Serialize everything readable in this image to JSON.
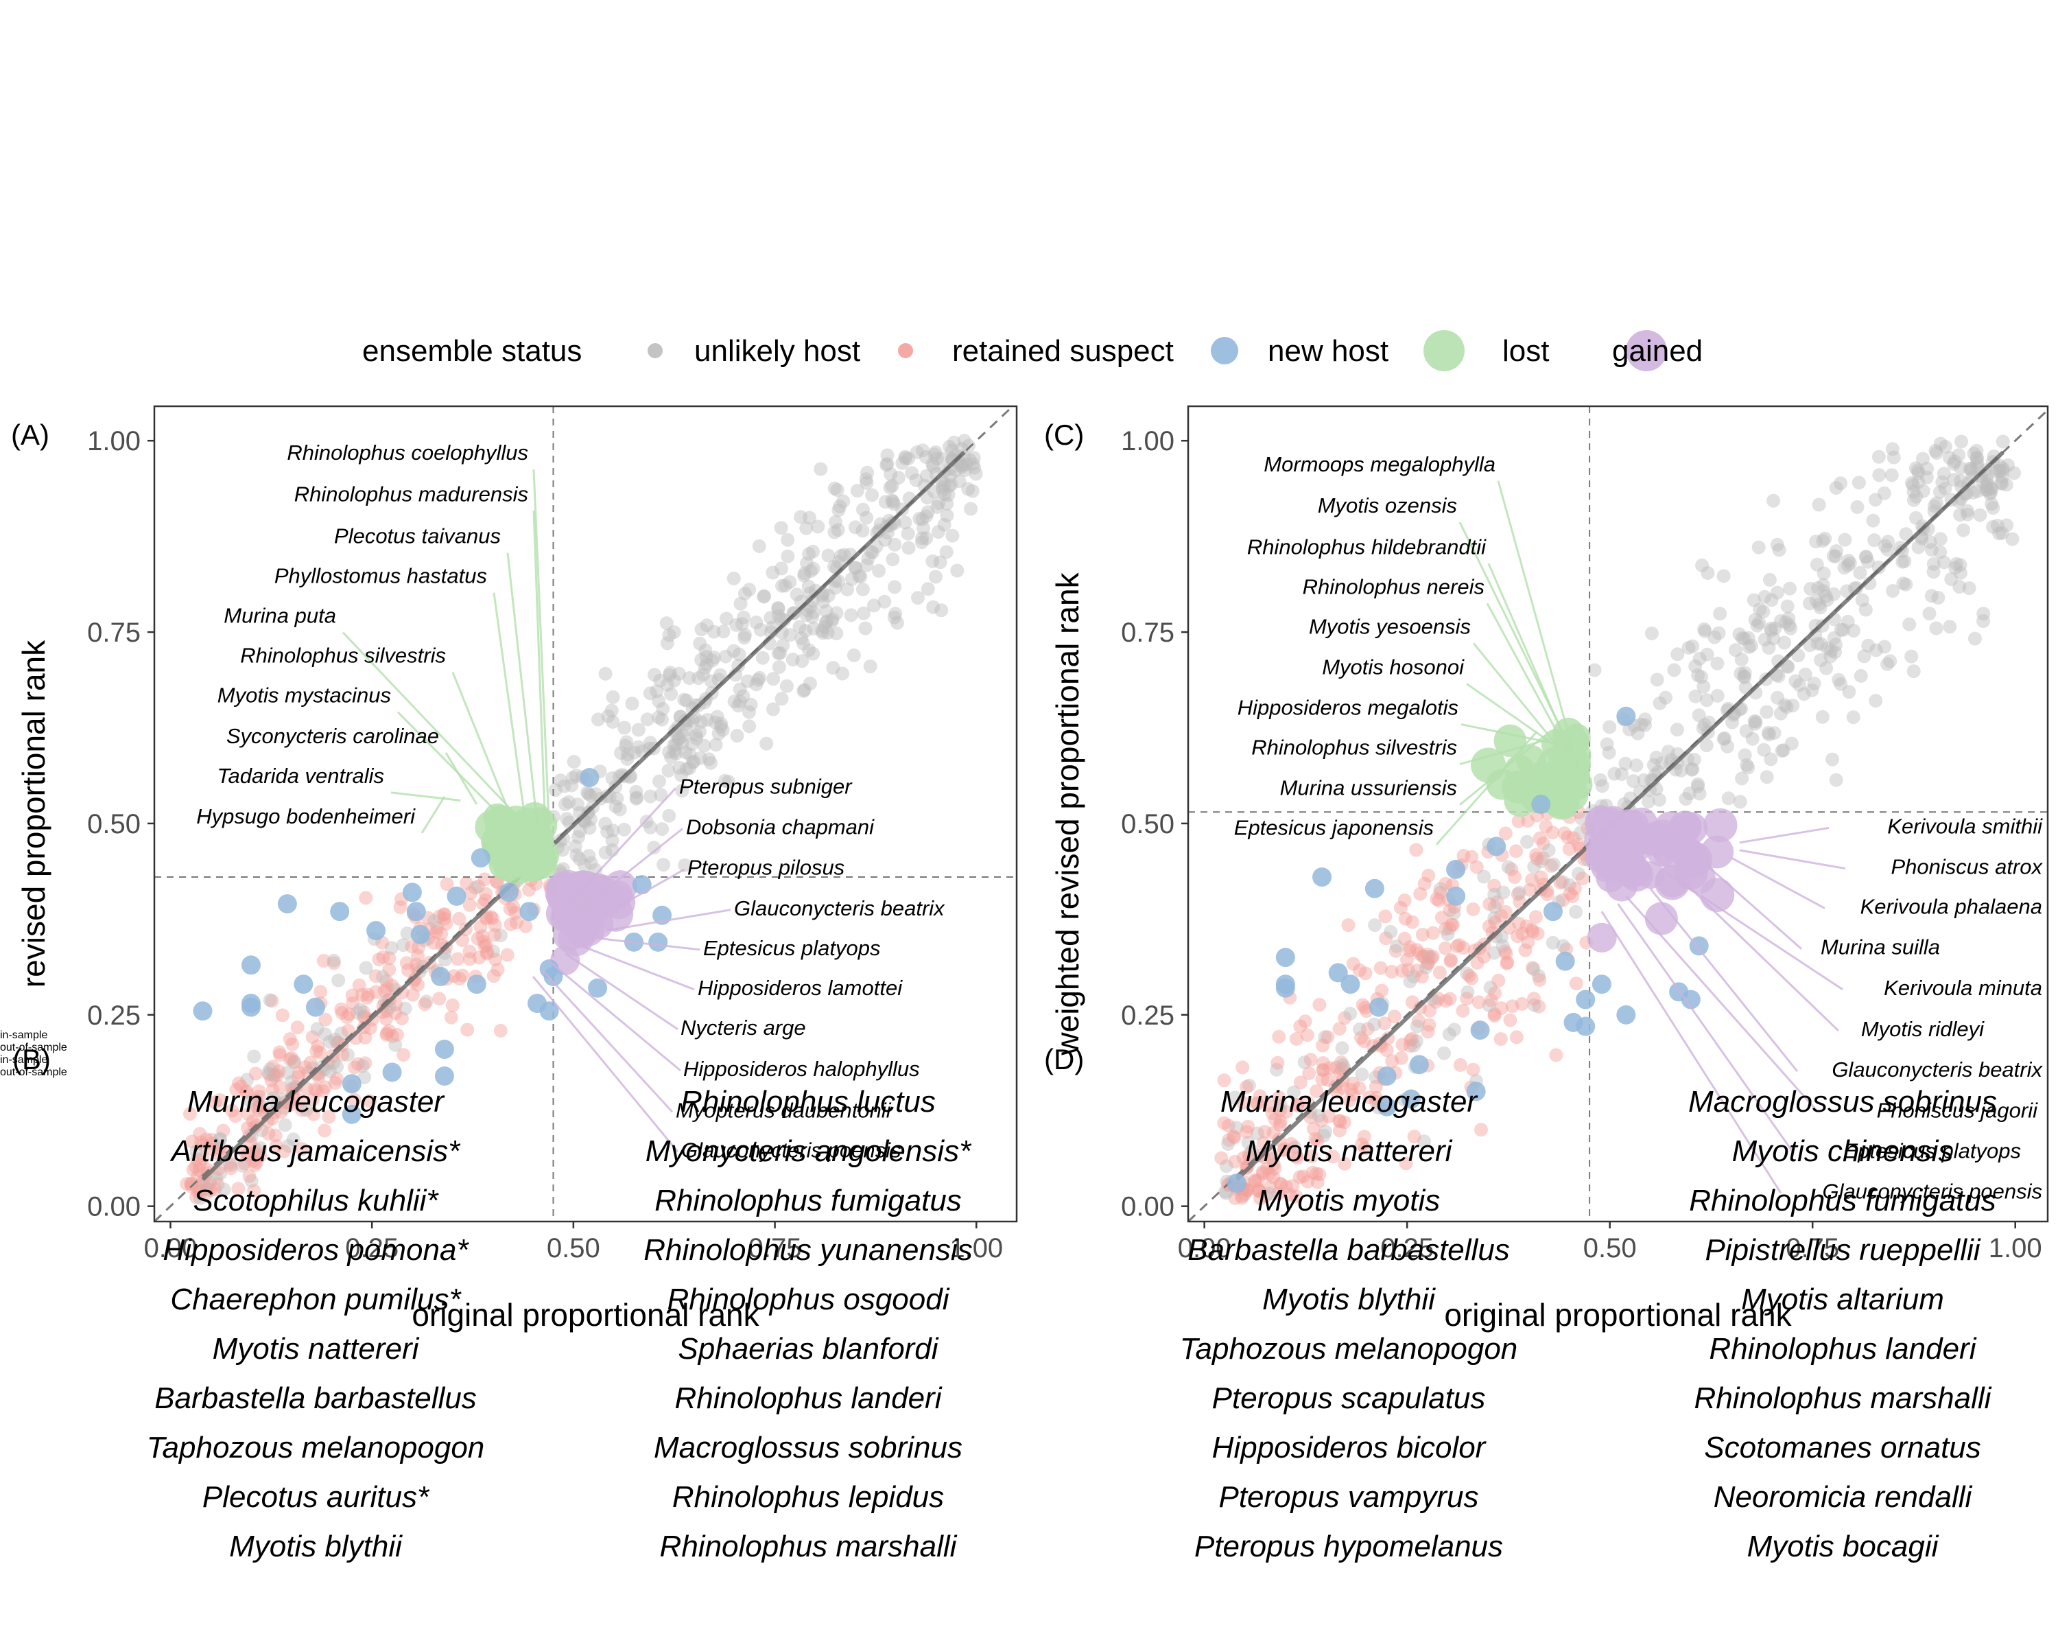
{
  "legend": {
    "title": "ensemble status",
    "items": [
      {
        "label": "unlikely host",
        "color": "#bdbdbd"
      },
      {
        "label": "retained suspect",
        "color": "#f4a09a"
      },
      {
        "label": "new host",
        "color": "#93b8dc"
      },
      {
        "label": "lost",
        "color": "#b4e0ad"
      },
      {
        "label": "gained",
        "color": "#cfb3dd"
      }
    ]
  },
  "chart_data": [
    {
      "panel": "(A)",
      "type": "scatter",
      "xlabel": "original proportional rank",
      "ylabel": "revised proportional rank",
      "xlim": [
        -0.02,
        1.05
      ],
      "ylim": [
        -0.02,
        1.045
      ],
      "xticks": [
        "0.00",
        "0.25",
        "0.50",
        "0.75",
        "1.00"
      ],
      "yticks": [
        "0.00",
        "0.25",
        "0.50",
        "0.75",
        "1.00"
      ],
      "threshold_x": 0.475,
      "threshold_y": 0.43,
      "reference_line": "y = x",
      "grid": false,
      "lost_labels": [
        {
          "name": "Rhinolophus coelophyllus",
          "y": 0.975,
          "x": 0.47
        },
        {
          "name": "Rhinolophus madurensis",
          "y": 0.921,
          "x": 0.465
        },
        {
          "name": "Plecotus taivanus",
          "y": 0.866,
          "x": 0.455
        },
        {
          "name": "Phyllostomus hastatus",
          "y": 0.814,
          "x": 0.44
        },
        {
          "name": "Murina puta",
          "y": 0.762,
          "x": 0.43
        },
        {
          "name": "Rhinolophus silvestris",
          "y": 0.71,
          "x": 0.42
        },
        {
          "name": "Myotis mystacinus",
          "y": 0.658,
          "x": 0.4
        },
        {
          "name": "Syconycteris carolinae",
          "y": 0.605,
          "x": 0.38
        },
        {
          "name": "Tadarida ventralis",
          "y": 0.553,
          "x": 0.36
        },
        {
          "name": "Hypsugo bodenheimeri",
          "y": 0.5,
          "x": 0.34
        }
      ],
      "gained_labels": [
        {
          "name": "Pteropus subniger",
          "y": 0.539,
          "x": 0.49
        },
        {
          "name": "Dobsonia chapmani",
          "y": 0.486,
          "x": 0.5
        },
        {
          "name": "Pteropus pilosus",
          "y": 0.433,
          "x": 0.52
        },
        {
          "name": "Glauconycteris beatrix",
          "y": 0.38,
          "x": 0.54
        },
        {
          "name": "Eptesicus platyops",
          "y": 0.328,
          "x": 0.53
        },
        {
          "name": "Hipposideros lamottei",
          "y": 0.276,
          "x": 0.51
        },
        {
          "name": "Nycteris arge",
          "y": 0.224,
          "x": 0.49
        },
        {
          "name": "Hipposideros halophyllus",
          "y": 0.17,
          "x": 0.47
        },
        {
          "name": "Myopterus daubentonii",
          "y": 0.116,
          "x": 0.46
        },
        {
          "name": "Glauconycteris poensis",
          "y": 0.064,
          "x": 0.45
        }
      ],
      "new_host_points": [
        [
          0.04,
          0.255
        ],
        [
          0.1,
          0.315
        ],
        [
          0.1,
          0.265
        ],
        [
          0.1,
          0.26
        ],
        [
          0.145,
          0.395
        ],
        [
          0.165,
          0.29
        ],
        [
          0.18,
          0.26
        ],
        [
          0.21,
          0.385
        ],
        [
          0.225,
          0.16
        ],
        [
          0.225,
          0.12
        ],
        [
          0.255,
          0.36
        ],
        [
          0.275,
          0.175
        ],
        [
          0.3,
          0.41
        ],
        [
          0.305,
          0.385
        ],
        [
          0.31,
          0.355
        ],
        [
          0.335,
          0.3
        ],
        [
          0.34,
          0.205
        ],
        [
          0.34,
          0.17
        ],
        [
          0.355,
          0.405
        ],
        [
          0.38,
          0.29
        ],
        [
          0.385,
          0.455
        ],
        [
          0.42,
          0.41
        ],
        [
          0.445,
          0.385
        ],
        [
          0.47,
          0.31
        ],
        [
          0.47,
          0.255
        ],
        [
          0.455,
          0.265
        ],
        [
          0.475,
          0.3
        ],
        [
          0.53,
          0.285
        ],
        [
          0.575,
          0.345
        ],
        [
          0.585,
          0.42
        ],
        [
          0.605,
          0.345
        ],
        [
          0.61,
          0.38
        ],
        [
          0.52,
          0.56
        ]
      ]
    },
    {
      "panel": "(C)",
      "type": "scatter",
      "xlabel": "original proportional rank",
      "ylabel": "weighted revised proportional rank",
      "xlim": [
        -0.02,
        1.04
      ],
      "ylim": [
        -0.02,
        1.045
      ],
      "xticks": [
        "0.00",
        "0.25",
        "0.50",
        "0.75",
        "1.00"
      ],
      "yticks": [
        "0.00",
        "0.25",
        "0.50",
        "0.75",
        "1.00"
      ],
      "threshold_x": 0.475,
      "threshold_y": 0.515,
      "reference_line": "y = x",
      "grid": false,
      "lost_labels": [
        {
          "name": "Mormoops megalophylla",
          "y": 0.96,
          "x": 0.46
        },
        {
          "name": "Myotis ozensis",
          "y": 0.906,
          "x": 0.46
        },
        {
          "name": "Rhinolophus hildebrandtii",
          "y": 0.852,
          "x": 0.455
        },
        {
          "name": "Rhinolophus nereis",
          "y": 0.8,
          "x": 0.45
        },
        {
          "name": "Myotis yesoensis",
          "y": 0.748,
          "x": 0.44
        },
        {
          "name": "Myotis hosonoi",
          "y": 0.695,
          "x": 0.435
        },
        {
          "name": "Hipposideros megalotis",
          "y": 0.642,
          "x": 0.43
        },
        {
          "name": "Rhinolophus silvestris",
          "y": 0.59,
          "x": 0.425
        },
        {
          "name": "Murina ussuriensis",
          "y": 0.537,
          "x": 0.42
        },
        {
          "name": "Eptesicus japonensis",
          "y": 0.485,
          "x": 0.41
        }
      ],
      "gained_labels": [
        {
          "name": "Kerivoula smithii",
          "y": 0.487,
          "x": 0.66
        },
        {
          "name": "Phoniscus atrox",
          "y": 0.434,
          "x": 0.66
        },
        {
          "name": "Kerivoula phalaena",
          "y": 0.382,
          "x": 0.65
        },
        {
          "name": "Murina suilla",
          "y": 0.329,
          "x": 0.62
        },
        {
          "name": "Kerivoula minuta",
          "y": 0.276,
          "x": 0.57
        },
        {
          "name": "Myotis ridleyi",
          "y": 0.222,
          "x": 0.59
        },
        {
          "name": "Glauconycteris beatrix",
          "y": 0.169,
          "x": 0.55
        },
        {
          "name": "Phoniscus jagorii",
          "y": 0.116,
          "x": 0.52
        },
        {
          "name": "Eptesicus platyops",
          "y": 0.063,
          "x": 0.51
        },
        {
          "name": "Glauconycteris poensis",
          "y": 0.01,
          "x": 0.49
        }
      ],
      "new_host_points": [
        [
          0.04,
          0.03
        ],
        [
          0.1,
          0.325
        ],
        [
          0.1,
          0.29
        ],
        [
          0.1,
          0.285
        ],
        [
          0.145,
          0.43
        ],
        [
          0.165,
          0.305
        ],
        [
          0.18,
          0.29
        ],
        [
          0.21,
          0.415
        ],
        [
          0.225,
          0.13
        ],
        [
          0.225,
          0.17
        ],
        [
          0.215,
          0.26
        ],
        [
          0.255,
          0.14
        ],
        [
          0.265,
          0.185
        ],
        [
          0.31,
          0.44
        ],
        [
          0.31,
          0.405
        ],
        [
          0.335,
          0.15
        ],
        [
          0.34,
          0.23
        ],
        [
          0.36,
          0.47
        ],
        [
          0.43,
          0.385
        ],
        [
          0.445,
          0.32
        ],
        [
          0.455,
          0.24
        ],
        [
          0.47,
          0.235
        ],
        [
          0.47,
          0.27
        ],
        [
          0.49,
          0.29
        ],
        [
          0.52,
          0.25
        ],
        [
          0.52,
          0.64
        ],
        [
          0.585,
          0.28
        ],
        [
          0.6,
          0.27
        ],
        [
          0.61,
          0.34
        ],
        [
          0.415,
          0.525
        ]
      ]
    }
  ],
  "panels": {
    "A": "(A)",
    "B": "(B)",
    "C": "(C)",
    "D": "(D)"
  },
  "lists": {
    "B": {
      "in_sample": [
        "Murina leucogaster",
        "Artibeus jamaicensis*",
        "Scotophilus kuhlii*",
        "Hipposideros pomona*",
        "Chaerephon pumilus*",
        "Myotis nattereri",
        "Barbastella barbastellus",
        "Taphozous melanopogon",
        "Plecotus auritus*",
        "Myotis blythii"
      ],
      "out_of_sample": [
        "Rhinolophus luctus",
        "Myonycteris angolensis*",
        "Rhinolophus fumigatus",
        "Rhinolophus yunanensis",
        "Rhinolophus osgoodi",
        "Sphaerias blanfordi",
        "Rhinolophus landeri",
        "Macroglossus sobrinus",
        "Rhinolophus lepidus",
        "Rhinolophus marshalli"
      ],
      "in_label": "in-sample",
      "out_label": "out-of-sample"
    },
    "D": {
      "in_sample": [
        "Murina leucogaster",
        "Myotis nattereri",
        "Myotis myotis",
        "Barbastella barbastellus",
        "Myotis blythii",
        "Taphozous melanopogon",
        "Pteropus scapulatus",
        "Hipposideros bicolor",
        "Pteropus vampyrus",
        "Pteropus hypomelanus"
      ],
      "out_of_sample": [
        "Macroglossus sobrinus",
        "Myotis chinensis",
        "Rhinolophus fumigatus",
        "Pipistrellus rueppellii",
        "Myotis altarium",
        "Rhinolophus landeri",
        "Rhinolophus marshalli",
        "Scotomanes ornatus",
        "Neoromicia rendalli",
        "Myotis bocagii"
      ],
      "in_label": "in-sample",
      "out_label": "out-of-sample"
    }
  }
}
